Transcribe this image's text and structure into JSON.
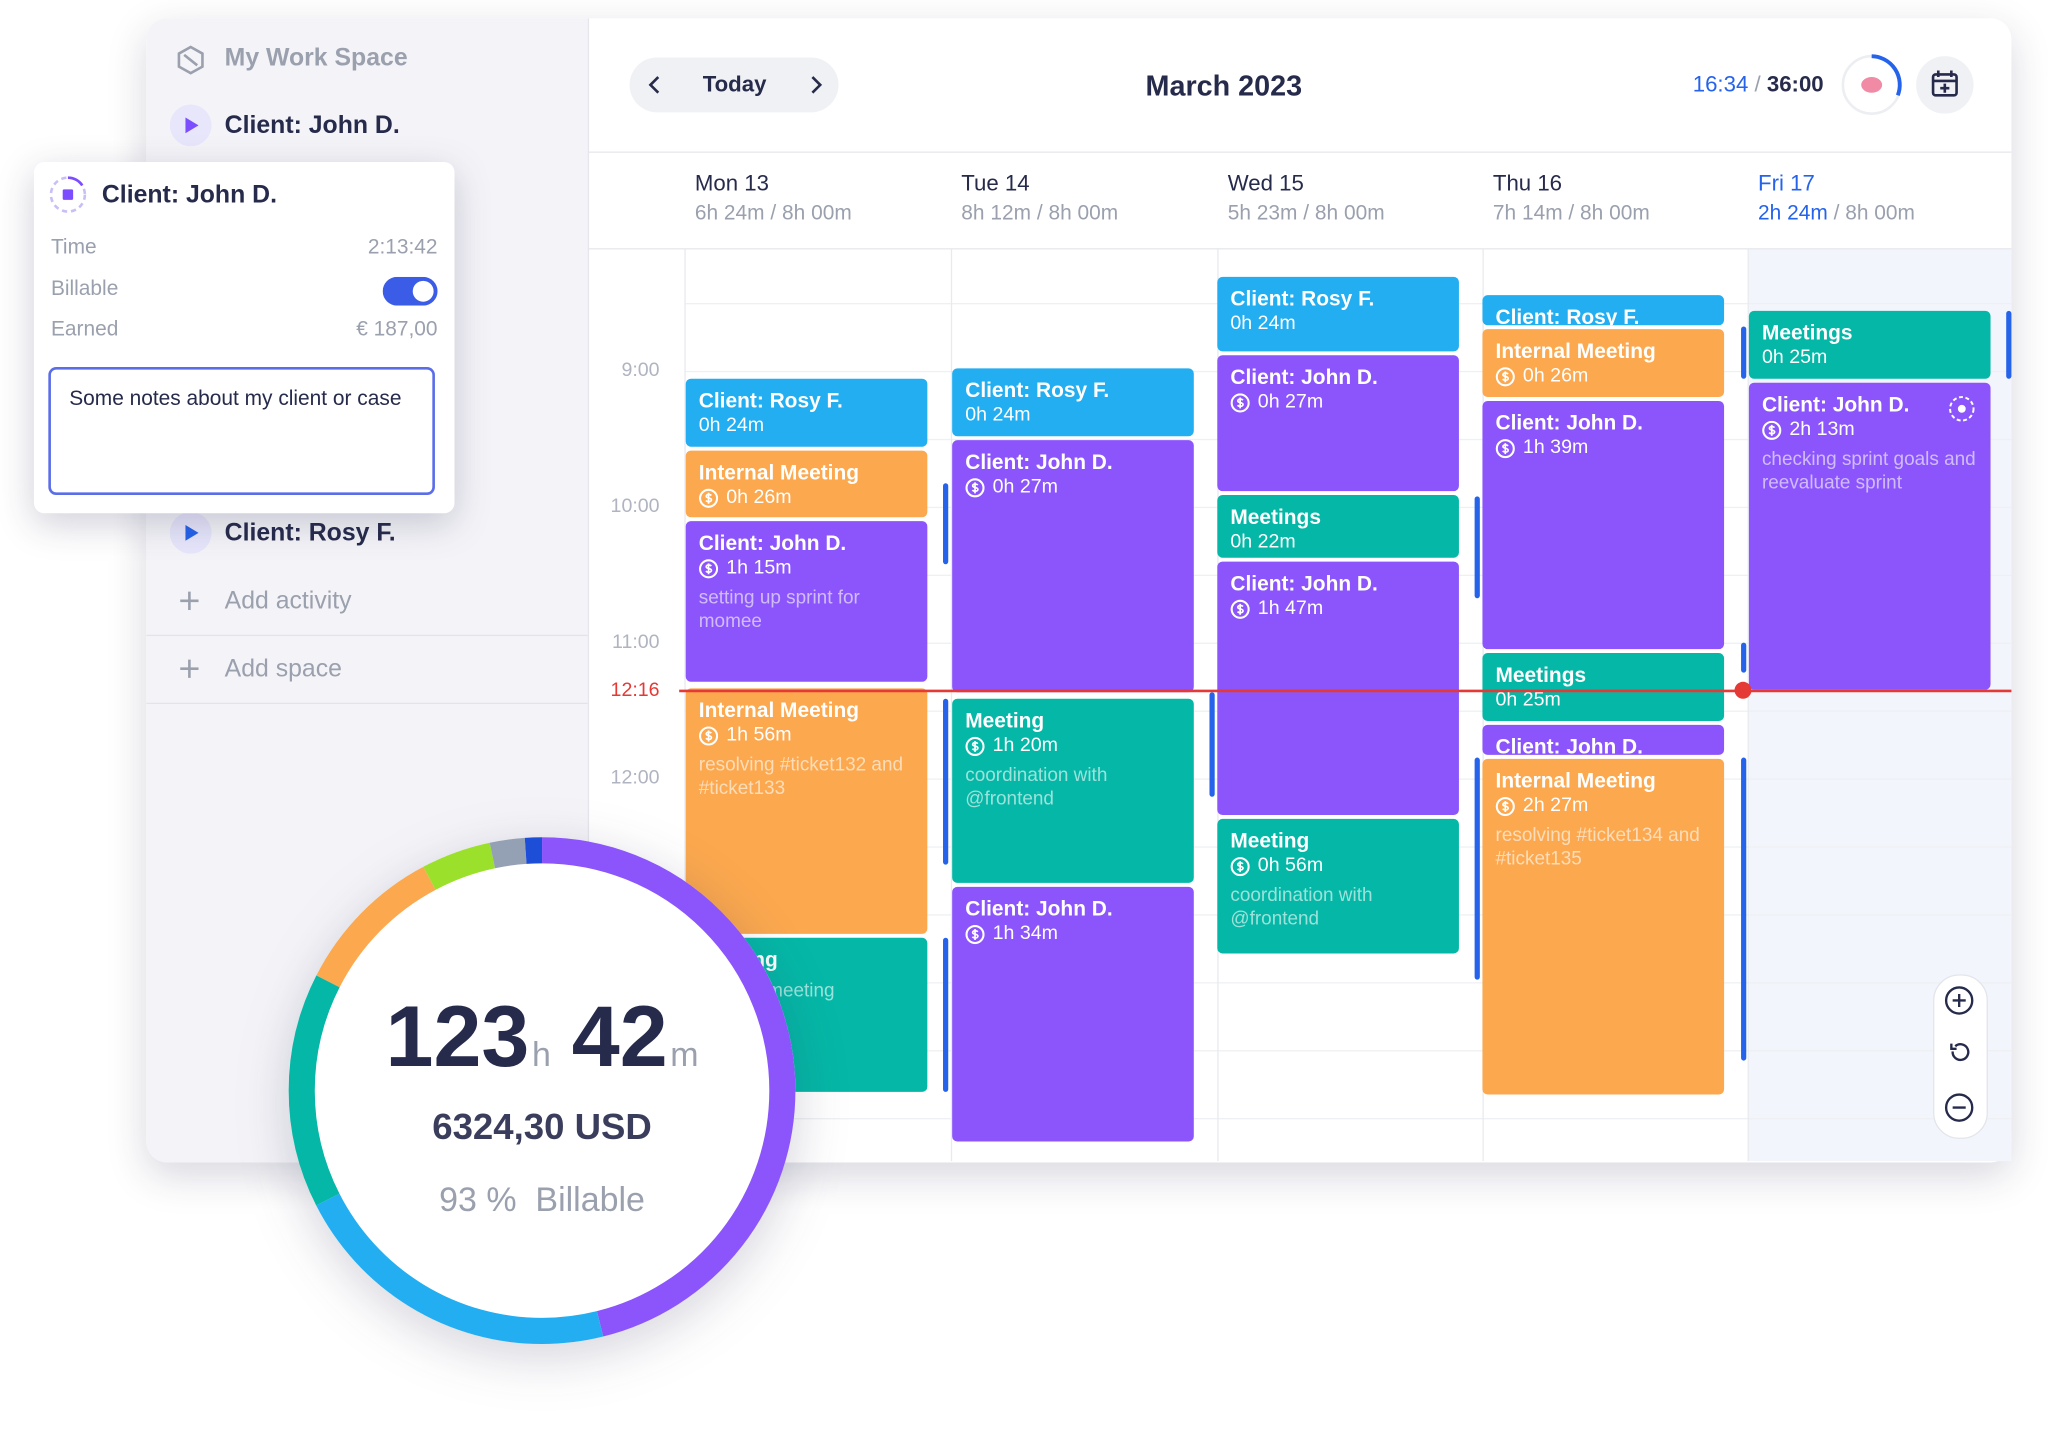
{
  "sidebar": {
    "workspace": "My Work Space",
    "items": [
      "Client: John D.",
      "Client: Rosy F."
    ],
    "add_activity": "Add activity",
    "add_space": "Add space"
  },
  "popup": {
    "title": "Client: John D.",
    "time_label": "Time",
    "time": "2:13:42",
    "billable_label": "Billable",
    "billable": true,
    "earned_label": "Earned",
    "earned": "€ 187,00",
    "notes": "Some notes about my client or case"
  },
  "separator": "/",
  "header": {
    "today": "Today",
    "month": "March 2023",
    "elapsed": "16:34",
    "total": "36:00"
  },
  "days": [
    {
      "name": "Mon 13",
      "tracked": "6h 24m",
      "planned": "8h 00m",
      "events": [
        {
          "title": "Client: Rosy F.",
          "duration": "0h 24m",
          "billable": false
        },
        {
          "title": "Internal Meeting",
          "duration": "0h 26m",
          "billable": true
        },
        {
          "title": "Client: John D.",
          "duration": "1h 15m",
          "billable": true,
          "note": "setting up sprint for momee"
        },
        {
          "title": "Internal Meeting",
          "duration": "1h 56m",
          "billable": true,
          "note": "resolving #ticket132 and #ticket133"
        },
        {
          "title": "Meeting",
          "note": "momee meeting"
        }
      ]
    },
    {
      "name": "Tue 14",
      "tracked": "8h 12m",
      "planned": "8h 00m",
      "events": [
        {
          "title": "Client: Rosy F.",
          "duration": "0h 24m",
          "billable": false
        },
        {
          "title": "Client: John D.",
          "duration": "0h 27m",
          "billable": true
        },
        {
          "title": "Meeting",
          "duration": "1h 20m",
          "billable": true,
          "note": "coordination with @frontend"
        },
        {
          "title": "Client: John D.",
          "duration": "1h 34m",
          "billable": true
        }
      ]
    },
    {
      "name": "Wed 15",
      "tracked": "5h 23m",
      "planned": "8h 00m",
      "events": [
        {
          "title": "Client: Rosy F.",
          "duration": "0h 24m",
          "billable": false
        },
        {
          "title": "Client: John D.",
          "duration": "0h 27m",
          "billable": true
        },
        {
          "title": "Meetings",
          "duration": "0h 22m",
          "billable": false
        },
        {
          "title": "Client: John D.",
          "duration": "1h 47m",
          "billable": true
        },
        {
          "title": "Meeting",
          "duration": "0h 56m",
          "billable": true,
          "note": "coordination with @frontend"
        }
      ]
    },
    {
      "name": "Thu 16",
      "tracked": "7h 14m",
      "planned": "8h 00m",
      "events": [
        {
          "title": "Client: Rosy F."
        },
        {
          "title": "Internal Meeting",
          "duration": "0h 26m",
          "billable": true
        },
        {
          "title": "Client: John D.",
          "duration": "1h 39m",
          "billable": true
        },
        {
          "title": "Meetings",
          "duration": "0h 25m",
          "billable": false
        },
        {
          "title": "Client: John D."
        },
        {
          "title": "Internal Meeting",
          "duration": "2h 27m",
          "billable": true,
          "note": "resolving #ticket134 and #ticket135"
        }
      ]
    },
    {
      "name": "Fri 17",
      "tracked": "2h 24m",
      "planned": "8h 00m",
      "events": [
        {
          "title": "Meetings",
          "duration": "0h 25m",
          "billable": false
        },
        {
          "title": "Client: John D.",
          "duration": "2h 13m",
          "billable": true,
          "note": "checking sprint goals and reevaluate sprint"
        }
      ]
    }
  ],
  "hours": [
    "9:00",
    "10:00",
    "11:00",
    "12:00"
  ],
  "now": "12:16",
  "summary": {
    "hours": "123",
    "hours_unit": "h",
    "minutes": "42",
    "minutes_unit": "m",
    "amount": "6324,30 USD",
    "billable_percent": "93 %",
    "billable_label": "Billable"
  }
}
